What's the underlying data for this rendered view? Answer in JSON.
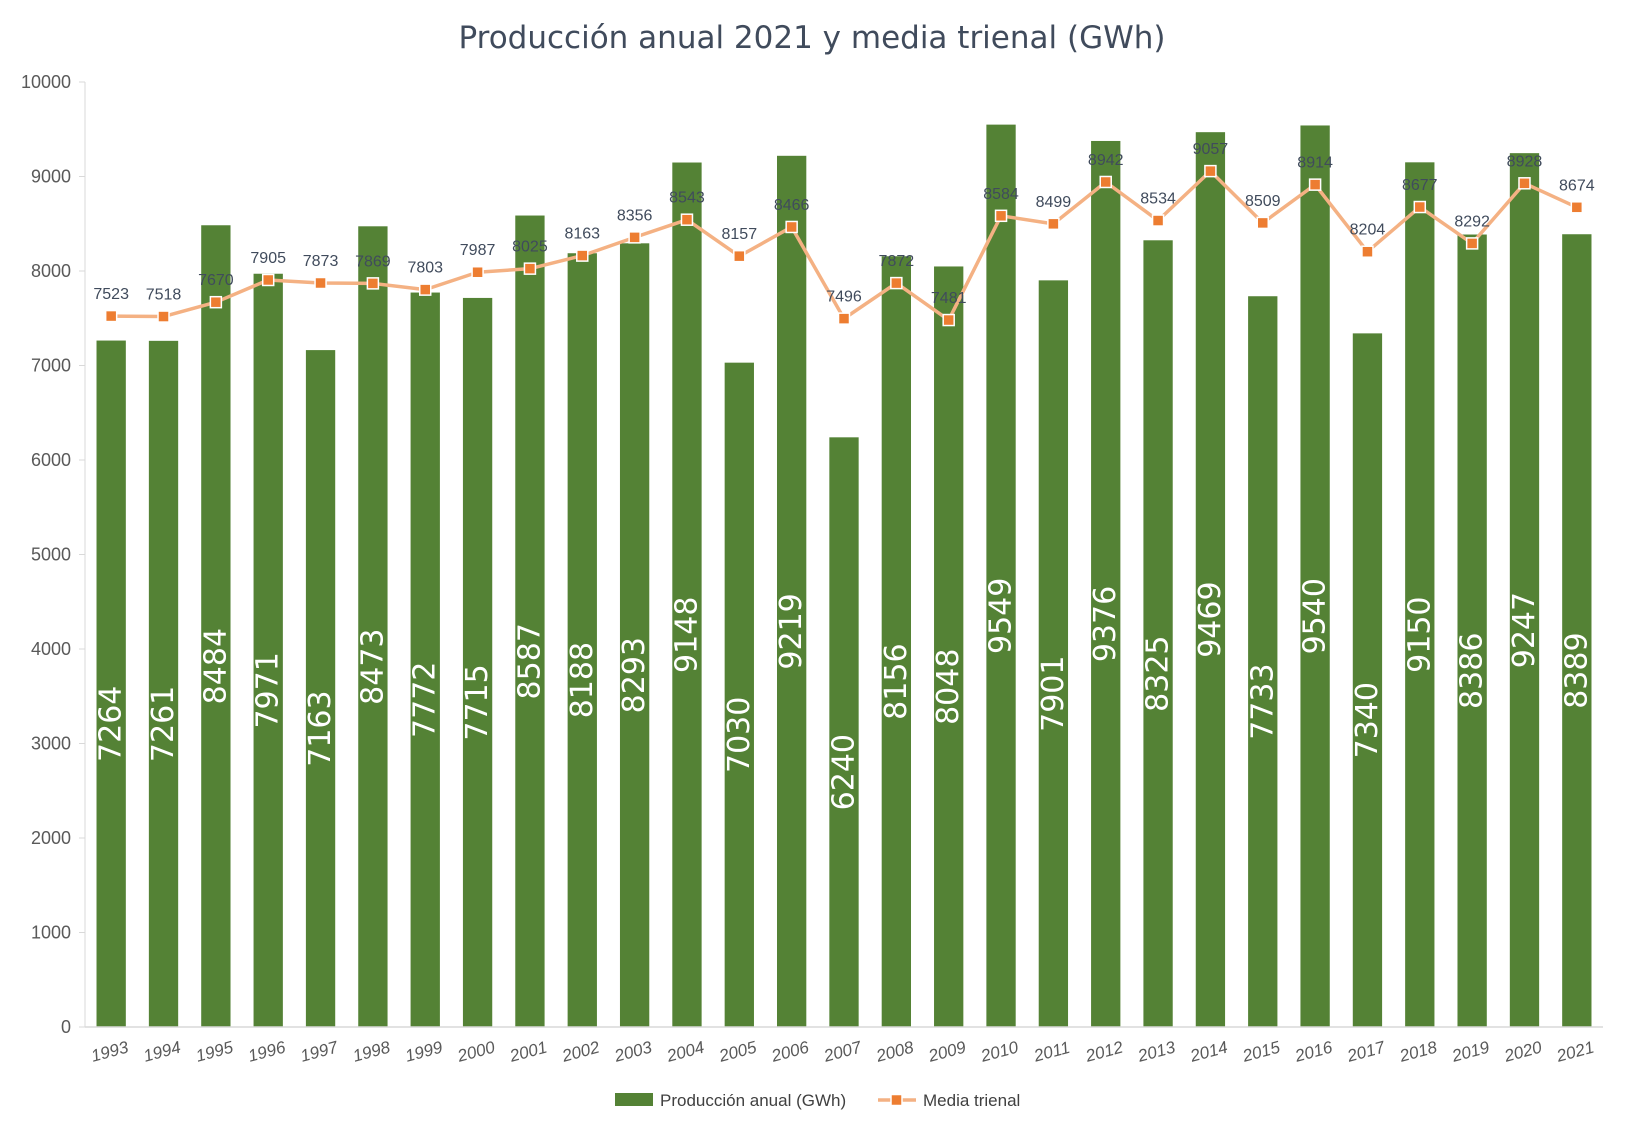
{
  "chart_data": {
    "type": "bar",
    "title": "Producción anual 2021 y media trienal (GWh)",
    "xlabel": "",
    "ylabel": "",
    "ylim": [
      0,
      10000
    ],
    "yticks": [
      0,
      1000,
      2000,
      3000,
      4000,
      5000,
      6000,
      7000,
      8000,
      9000,
      10000
    ],
    "grid": false,
    "legend_position": "bottom",
    "categories": [
      "1993",
      "1994",
      "1995",
      "1996",
      "1997",
      "1998",
      "1999",
      "2000",
      "2001",
      "2002",
      "2003",
      "2004",
      "2005",
      "2006",
      "2007",
      "2008",
      "2009",
      "2010",
      "2011",
      "2012",
      "2013",
      "2014",
      "2015",
      "2016",
      "2017",
      "2018",
      "2019",
      "2020",
      "2021"
    ],
    "series": [
      {
        "name": "Producción anual (GWh)",
        "type": "bar",
        "color": "#548235",
        "values": [
          7264,
          7261,
          8484,
          7971,
          7163,
          8473,
          7772,
          7715,
          8587,
          8188,
          8293,
          9148,
          7030,
          9219,
          6240,
          8156,
          8048,
          9549,
          7901,
          9376,
          8325,
          9469,
          7733,
          9540,
          7340,
          9150,
          8386,
          9247,
          8389
        ]
      },
      {
        "name": "Media trienal",
        "type": "line",
        "color": "#f4b183",
        "marker_color": "#ed7d31",
        "values": [
          7523,
          7518,
          7670,
          7905,
          7873,
          7869,
          7803,
          7987,
          8025,
          8163,
          8356,
          8543,
          8157,
          8466,
          7496,
          7872,
          7481,
          8584,
          8499,
          8942,
          8534,
          9057,
          8509,
          8914,
          8204,
          8677,
          8292,
          8928,
          8674
        ]
      }
    ]
  }
}
